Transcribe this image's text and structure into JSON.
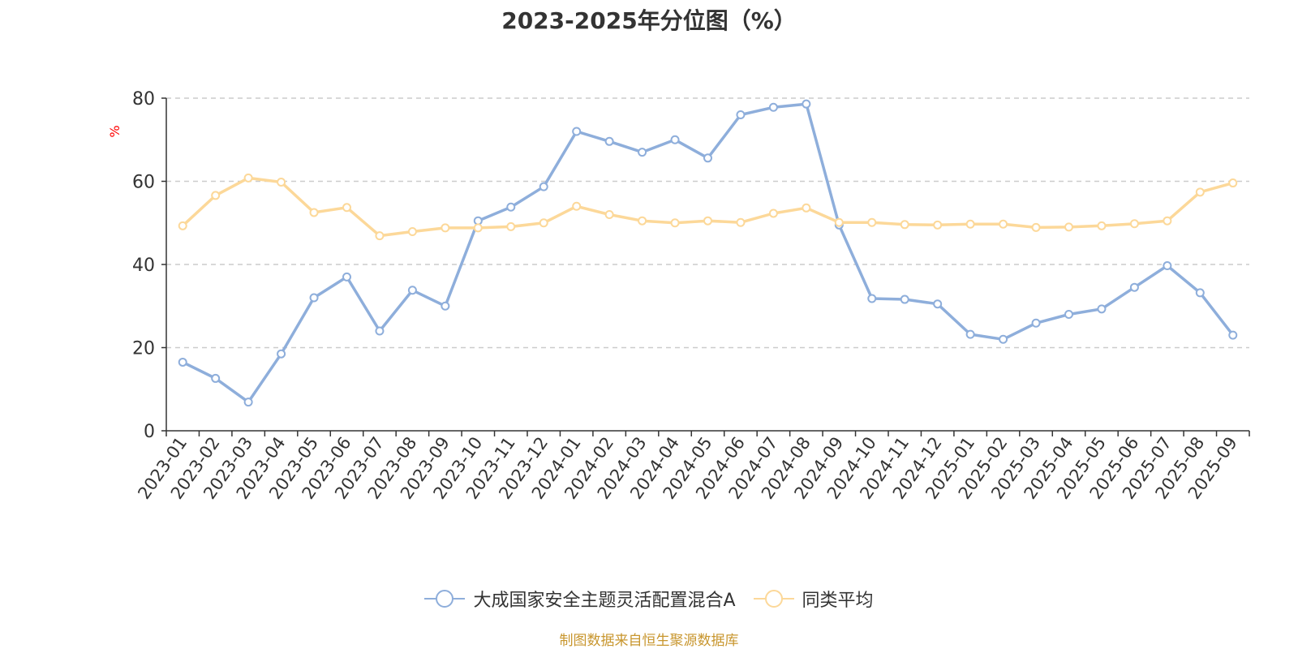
{
  "title": "2023-2025年分位图（%）",
  "source_note": "制图数据来自恒生聚源数据库",
  "colors": {
    "series_fund": "#8eaedb",
    "series_avg": "#fcd899",
    "axis": "#333333",
    "grid": "#cccccc",
    "unit_label": "#ff0000",
    "source_note": "#c8962e"
  },
  "chart_data": {
    "type": "line",
    "title": "2023-2025年分位图（%）",
    "ylabel": "%",
    "xlabel": "",
    "ylim": [
      0,
      80
    ],
    "yticks": [
      0,
      20,
      40,
      60,
      80
    ],
    "grid": true,
    "legend_position": "bottom",
    "x": [
      "2023-01",
      "2023-02",
      "2023-03",
      "2023-04",
      "2023-05",
      "2023-06",
      "2023-07",
      "2023-08",
      "2023-09",
      "2023-10",
      "2023-11",
      "2023-12",
      "2024-01",
      "2024-02",
      "2024-03",
      "2024-04",
      "2024-05",
      "2024-06",
      "2024-07",
      "2024-08",
      "2024-09",
      "2024-10",
      "2024-11",
      "2024-12",
      "2025-01",
      "2025-02",
      "2025-03",
      "2025-04",
      "2025-05",
      "2025-06",
      "2025-07",
      "2025-08",
      "2025-09"
    ],
    "series": [
      {
        "name": "大成国家安全主题灵活配置混合A",
        "values": [
          16.5,
          12.6,
          6.9,
          18.5,
          32.0,
          37.0,
          24.0,
          33.8,
          30.0,
          50.5,
          53.8,
          58.7,
          72.0,
          69.6,
          67.0,
          70.0,
          65.6,
          76.0,
          77.8,
          78.6,
          49.5,
          31.8,
          31.6,
          30.5,
          23.2,
          22.0,
          25.9,
          28.0,
          29.3,
          34.5,
          39.7,
          33.2,
          23.0
        ]
      },
      {
        "name": "同类平均",
        "values": [
          49.3,
          56.6,
          60.8,
          59.8,
          52.5,
          53.7,
          46.9,
          47.9,
          48.8,
          48.8,
          49.1,
          50.0,
          54.0,
          52.0,
          50.5,
          50.0,
          50.5,
          50.1,
          52.3,
          53.6,
          50.1,
          50.1,
          49.6,
          49.5,
          49.7,
          49.7,
          48.9,
          49.0,
          49.3,
          49.8,
          50.5,
          57.4,
          59.6
        ]
      }
    ]
  }
}
